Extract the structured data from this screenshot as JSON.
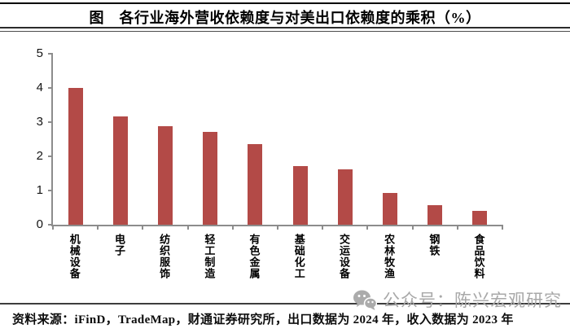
{
  "header": {
    "title": "图　各行业海外营收依赖度与对美出口依赖度的乘积（%）"
  },
  "chart_data": {
    "type": "bar",
    "title": "各行业海外营收依赖度与对美出口依赖度的乘积（%）",
    "categories": [
      "机械设备",
      "电子",
      "纺织服饰",
      "轻工制造",
      "有色金属",
      "基础化工",
      "交运设备",
      "农林牧渔",
      "钢铁",
      "食品饮料"
    ],
    "values": [
      4.0,
      3.17,
      2.87,
      2.71,
      2.36,
      1.71,
      1.63,
      0.94,
      0.57,
      0.41
    ],
    "xlabel": "",
    "ylabel": "",
    "ylim": [
      0,
      5
    ],
    "yticks": [
      0,
      1,
      2,
      3,
      4,
      5
    ],
    "grid": false,
    "legend": false,
    "bar_color": "#b34a47",
    "axis_color": "#8c8c8c"
  },
  "footer": {
    "source": "资料来源：iFinD，TradeMap，财通证券研究所，出口数据为 2024 年，收入数据为 2023 年"
  },
  "watermark": {
    "icon": "wechat-icon",
    "text": "公众号：陈兴宏观研究",
    "color": "#a8a8a8"
  }
}
